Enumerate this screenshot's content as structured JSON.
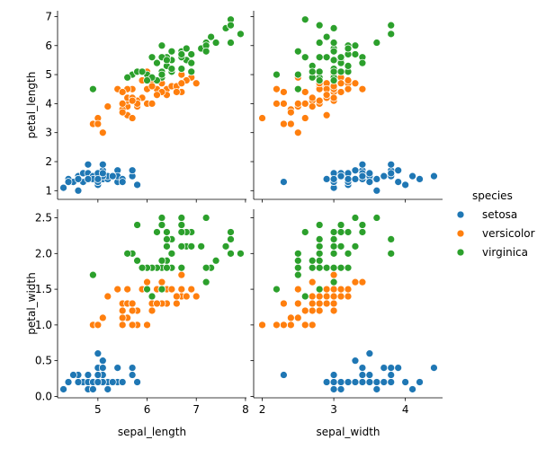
{
  "chart_data": {
    "type": "scatter",
    "kind": "pairgrid",
    "x_vars": [
      "sepal_length",
      "sepal_width"
    ],
    "y_vars": [
      "petal_length",
      "petal_width"
    ],
    "legend": {
      "title": "species",
      "placement": "right-center",
      "entries": [
        {
          "name": "setosa",
          "color": "#1f77b4"
        },
        {
          "name": "versicolor",
          "color": "#ff7f0e"
        },
        {
          "name": "virginica",
          "color": "#2ca02c"
        }
      ]
    },
    "axes": {
      "x": {
        "sepal_length": {
          "label": "sepal_length",
          "lim": [
            4.18,
            8.02
          ],
          "ticks": [
            5,
            6,
            7,
            8
          ]
        },
        "sepal_width": {
          "label": "sepal_width",
          "lim": [
            1.88,
            4.52
          ],
          "ticks": [
            2,
            3,
            4
          ]
        }
      },
      "y": {
        "petal_length": {
          "label": "petal_length",
          "lim": [
            0.7,
            7.2
          ],
          "ticks": [
            1,
            2,
            3,
            4,
            5,
            6,
            7
          ]
        },
        "petal_width": {
          "label": "petal_width",
          "lim": [
            -0.02,
            2.62
          ],
          "ticks": [
            "0.0",
            "0.5",
            "1.0",
            "1.5",
            "2.0",
            "2.5"
          ]
        }
      }
    },
    "grid": false,
    "series": [
      {
        "name": "setosa",
        "sepal_length": [
          5.1,
          4.9,
          4.7,
          4.6,
          5.0,
          5.4,
          4.6,
          5.0,
          4.4,
          4.9,
          5.4,
          4.8,
          4.8,
          4.3,
          5.8,
          5.7,
          5.4,
          5.1,
          5.7,
          5.1,
          5.4,
          5.1,
          4.6,
          5.1,
          4.8,
          5.0,
          5.0,
          5.2,
          5.2,
          4.7,
          4.8,
          5.4,
          5.2,
          5.5,
          4.9,
          5.0,
          5.5,
          4.9,
          4.4,
          5.1,
          5.0,
          4.5,
          4.4,
          5.0,
          5.1,
          4.8,
          5.1,
          4.6,
          5.3,
          5.0
        ],
        "sepal_width": [
          3.5,
          3.0,
          3.2,
          3.1,
          3.6,
          3.9,
          3.4,
          3.4,
          2.9,
          3.1,
          3.7,
          3.4,
          3.0,
          3.0,
          4.0,
          4.4,
          3.9,
          3.5,
          3.8,
          3.8,
          3.4,
          3.7,
          3.6,
          3.3,
          3.4,
          3.0,
          3.4,
          3.5,
          3.4,
          3.2,
          3.1,
          3.4,
          4.1,
          4.2,
          3.1,
          3.2,
          3.5,
          3.6,
          3.0,
          3.4,
          3.5,
          2.3,
          3.2,
          3.5,
          3.8,
          3.0,
          3.8,
          3.2,
          3.7,
          3.3
        ],
        "petal_length": [
          1.4,
          1.4,
          1.3,
          1.5,
          1.4,
          1.7,
          1.4,
          1.5,
          1.4,
          1.5,
          1.5,
          1.6,
          1.4,
          1.1,
          1.2,
          1.5,
          1.3,
          1.4,
          1.7,
          1.5,
          1.7,
          1.5,
          1.0,
          1.7,
          1.9,
          1.6,
          1.6,
          1.5,
          1.4,
          1.6,
          1.6,
          1.5,
          1.5,
          1.4,
          1.5,
          1.2,
          1.3,
          1.4,
          1.3,
          1.5,
          1.3,
          1.3,
          1.3,
          1.6,
          1.9,
          1.4,
          1.6,
          1.4,
          1.5,
          1.4
        ],
        "petal_width": [
          0.2,
          0.2,
          0.2,
          0.2,
          0.2,
          0.4,
          0.3,
          0.2,
          0.2,
          0.1,
          0.2,
          0.2,
          0.1,
          0.1,
          0.2,
          0.4,
          0.4,
          0.3,
          0.3,
          0.3,
          0.2,
          0.4,
          0.2,
          0.5,
          0.2,
          0.2,
          0.4,
          0.2,
          0.2,
          0.2,
          0.2,
          0.4,
          0.1,
          0.2,
          0.2,
          0.2,
          0.2,
          0.1,
          0.2,
          0.2,
          0.3,
          0.3,
          0.2,
          0.6,
          0.4,
          0.3,
          0.2,
          0.2,
          0.2,
          0.2
        ]
      },
      {
        "name": "versicolor",
        "sepal_length": [
          7.0,
          6.4,
          6.9,
          5.5,
          6.5,
          5.7,
          6.3,
          4.9,
          6.6,
          5.2,
          5.0,
          5.9,
          6.0,
          6.1,
          5.6,
          6.7,
          5.6,
          5.8,
          6.2,
          5.6,
          5.9,
          6.1,
          6.3,
          6.1,
          6.4,
          6.6,
          6.8,
          6.7,
          6.0,
          5.7,
          5.5,
          5.5,
          5.8,
          6.0,
          5.4,
          6.0,
          6.7,
          6.3,
          5.6,
          5.5,
          5.5,
          6.1,
          5.8,
          5.0,
          5.6,
          5.7,
          5.7,
          6.2,
          5.1,
          5.7
        ],
        "sepal_width": [
          3.2,
          3.2,
          3.1,
          2.3,
          2.8,
          2.8,
          3.3,
          2.4,
          2.9,
          2.7,
          2.0,
          3.0,
          2.2,
          2.9,
          2.9,
          3.1,
          3.0,
          2.7,
          2.2,
          2.5,
          3.2,
          2.8,
          2.5,
          2.8,
          2.9,
          3.0,
          2.8,
          3.0,
          2.9,
          2.6,
          2.4,
          2.4,
          2.7,
          2.7,
          3.0,
          3.4,
          3.1,
          2.3,
          3.0,
          2.5,
          2.6,
          3.0,
          2.6,
          2.3,
          2.7,
          3.0,
          2.9,
          2.9,
          2.5,
          2.8
        ],
        "petal_length": [
          4.7,
          4.5,
          4.9,
          4.0,
          4.6,
          4.5,
          4.7,
          3.3,
          4.6,
          3.9,
          3.5,
          4.2,
          4.0,
          4.7,
          3.6,
          4.4,
          4.5,
          4.1,
          4.5,
          3.9,
          4.8,
          4.0,
          4.9,
          4.7,
          4.3,
          4.4,
          4.8,
          5.0,
          4.5,
          3.5,
          3.8,
          3.7,
          3.9,
          5.1,
          4.5,
          4.5,
          4.7,
          4.4,
          4.1,
          4.0,
          4.4,
          4.6,
          4.0,
          3.3,
          4.2,
          4.2,
          4.2,
          4.3,
          3.0,
          4.1
        ],
        "petal_width": [
          1.4,
          1.5,
          1.5,
          1.3,
          1.5,
          1.3,
          1.6,
          1.0,
          1.3,
          1.4,
          1.0,
          1.5,
          1.0,
          1.4,
          1.3,
          1.4,
          1.5,
          1.0,
          1.5,
          1.1,
          1.8,
          1.3,
          1.5,
          1.2,
          1.3,
          1.4,
          1.4,
          1.7,
          1.5,
          1.0,
          1.1,
          1.0,
          1.2,
          1.6,
          1.5,
          1.6,
          1.5,
          1.3,
          1.3,
          1.3,
          1.2,
          1.4,
          1.2,
          1.0,
          1.3,
          1.2,
          1.3,
          1.3,
          1.1,
          1.3
        ]
      },
      {
        "name": "virginica",
        "sepal_length": [
          6.3,
          5.8,
          7.1,
          6.3,
          6.5,
          7.6,
          4.9,
          7.3,
          6.7,
          7.2,
          6.5,
          6.4,
          6.8,
          5.7,
          5.8,
          6.4,
          6.5,
          7.7,
          7.7,
          6.0,
          6.9,
          5.6,
          7.7,
          6.3,
          6.7,
          7.2,
          6.2,
          6.1,
          6.4,
          7.2,
          7.4,
          7.9,
          6.4,
          6.3,
          6.1,
          7.7,
          6.3,
          6.4,
          6.0,
          6.9,
          6.7,
          6.9,
          5.8,
          6.8,
          6.7,
          6.7,
          6.3,
          6.5,
          6.2,
          5.9
        ],
        "sepal_width": [
          3.3,
          2.7,
          3.0,
          2.9,
          3.0,
          3.0,
          2.5,
          2.9,
          2.5,
          3.6,
          3.2,
          2.7,
          3.0,
          2.5,
          2.8,
          3.2,
          3.0,
          3.8,
          2.6,
          2.2,
          3.2,
          2.8,
          2.8,
          2.7,
          3.3,
          3.2,
          2.8,
          3.0,
          2.8,
          3.0,
          2.8,
          3.8,
          2.8,
          2.8,
          2.6,
          3.0,
          3.4,
          3.1,
          3.0,
          3.1,
          3.1,
          3.1,
          2.7,
          3.2,
          3.3,
          3.0,
          2.5,
          3.0,
          3.4,
          3.0
        ],
        "petal_length": [
          6.0,
          5.1,
          5.9,
          5.6,
          5.8,
          6.6,
          4.5,
          6.3,
          5.8,
          6.1,
          5.1,
          5.3,
          5.5,
          5.0,
          5.1,
          5.3,
          5.5,
          6.7,
          6.9,
          5.0,
          5.7,
          4.9,
          6.7,
          4.9,
          5.7,
          6.0,
          4.8,
          4.9,
          5.6,
          5.8,
          6.1,
          6.4,
          5.6,
          5.1,
          5.6,
          6.1,
          5.6,
          5.5,
          4.8,
          5.4,
          5.6,
          5.1,
          5.1,
          5.9,
          5.7,
          5.2,
          5.0,
          5.2,
          5.4,
          5.1
        ],
        "petal_width": [
          2.5,
          1.9,
          2.1,
          1.8,
          2.2,
          2.1,
          1.7,
          1.8,
          1.8,
          2.5,
          2.0,
          1.9,
          2.1,
          2.0,
          2.4,
          2.3,
          1.8,
          2.2,
          2.3,
          1.5,
          2.3,
          2.0,
          2.0,
          1.8,
          2.1,
          1.8,
          1.8,
          1.8,
          2.1,
          1.6,
          1.9,
          2.0,
          2.2,
          1.5,
          1.4,
          2.3,
          2.4,
          1.8,
          1.8,
          2.1,
          2.4,
          2.3,
          1.9,
          2.3,
          2.5,
          2.3,
          1.9,
          2.0,
          2.3,
          1.8
        ]
      }
    ]
  }
}
